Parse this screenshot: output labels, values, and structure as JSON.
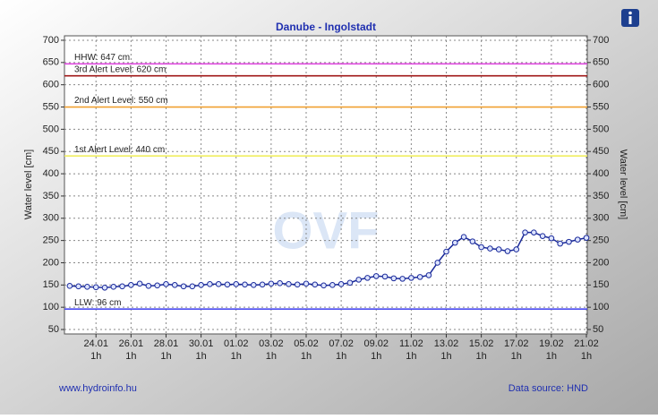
{
  "chart_data": {
    "type": "line",
    "title": "Danube - Ingolstadt",
    "ylabel": "Water level [cm]",
    "ylim": [
      40,
      710
    ],
    "yticks": [
      50,
      100,
      150,
      200,
      250,
      300,
      350,
      400,
      450,
      500,
      550,
      600,
      650,
      700
    ],
    "xlim": [
      22.2,
      52.05
    ],
    "xticks": [
      {
        "value": 24,
        "label": "24.01"
      },
      {
        "value": 26,
        "label": "26.01"
      },
      {
        "value": 28,
        "label": "28.01"
      },
      {
        "value": 30,
        "label": "30.01"
      },
      {
        "value": 32,
        "label": "01.02"
      },
      {
        "value": 34,
        "label": "03.02"
      },
      {
        "value": 36,
        "label": "05.02"
      },
      {
        "value": 38,
        "label": "07.02"
      },
      {
        "value": 40,
        "label": "09.02"
      },
      {
        "value": 42,
        "label": "11.02"
      },
      {
        "value": 44,
        "label": "13.02"
      },
      {
        "value": 46,
        "label": "15.02"
      },
      {
        "value": 48,
        "label": "17.02"
      },
      {
        "value": 50,
        "label": "19.02"
      },
      {
        "value": 52,
        "label": "21.02"
      }
    ],
    "xtick_sublabel": "1h",
    "grid": true,
    "x": [
      22.5,
      23,
      23.5,
      24,
      24.5,
      25,
      25.5,
      26,
      26.5,
      27,
      27.5,
      28,
      28.5,
      29,
      29.5,
      30,
      30.5,
      31,
      31.5,
      32,
      32.5,
      33,
      33.5,
      34,
      34.5,
      35,
      35.5,
      36,
      36.5,
      37,
      37.5,
      38,
      38.5,
      39,
      39.5,
      40,
      40.5,
      41,
      41.5,
      42,
      42.5,
      43,
      43.5,
      44,
      44.5,
      45,
      45.5,
      46,
      46.5,
      47,
      47.5,
      48,
      48.5,
      49,
      49.5,
      50,
      50.5,
      51,
      51.5,
      52
    ],
    "series": [
      {
        "color": "#1a2a9a",
        "values": [
          148,
          147,
          146,
          145,
          144,
          146,
          147,
          150,
          153,
          148,
          149,
          152,
          150,
          147,
          147,
          150,
          152,
          152,
          151,
          152,
          151,
          150,
          151,
          153,
          154,
          152,
          151,
          153,
          151,
          149,
          150,
          152,
          155,
          162,
          166,
          170,
          169,
          165,
          164,
          166,
          168,
          172,
          200,
          225,
          245,
          258,
          248,
          235,
          232,
          230,
          226,
          230,
          268,
          268,
          260,
          255,
          243,
          247,
          252,
          256
        ]
      }
    ],
    "thresholds": [
      {
        "label": "HHW: 647 cm",
        "value": 647,
        "color": "#e04ae0"
      },
      {
        "label": "3rd Alert Level: 620 cm",
        "value": 620,
        "color": "#a01818"
      },
      {
        "label": "2nd Alert Level: 550 cm",
        "value": 550,
        "color": "#f0a030"
      },
      {
        "label": "1st Alert Level: 440 cm",
        "value": 440,
        "color": "#f0ee60"
      },
      {
        "label": "LLW: 96 cm",
        "value": 96,
        "color": "#4a4af0"
      }
    ],
    "watermark": "OVF",
    "footer_left": "www.hydroinfo.hu",
    "footer_right": "Data source: HND"
  }
}
